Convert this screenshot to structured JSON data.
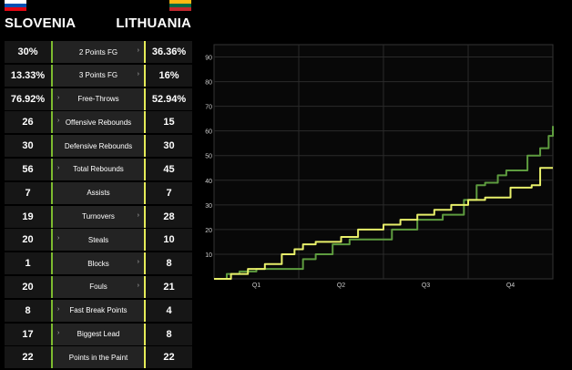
{
  "teams": {
    "left": {
      "name": "SLOVENIA",
      "flag_colors": [
        "#ffffff",
        "#0050b3",
        "#e30613"
      ]
    },
    "right": {
      "name": "LITHUANIA",
      "flag_colors": [
        "#fdb913",
        "#006a44",
        "#c1272d"
      ]
    }
  },
  "colors": {
    "left_accent": "#7dbb2f",
    "right_accent": "#e5ec57"
  },
  "stats": [
    {
      "label": "2 Points FG",
      "left": "30%",
      "right": "36.36%",
      "arrow": "right"
    },
    {
      "label": "3 Points FG",
      "left": "13.33%",
      "right": "16%",
      "arrow": "right"
    },
    {
      "label": "Free-Throws",
      "left": "76.92%",
      "right": "52.94%",
      "arrow": "left"
    },
    {
      "label": "Offensive Rebounds",
      "left": "26",
      "right": "15",
      "arrow": "left"
    },
    {
      "label": "Defensive Rebounds",
      "left": "30",
      "right": "30",
      "arrow": "none"
    },
    {
      "label": "Total Rebounds",
      "left": "56",
      "right": "45",
      "arrow": "left"
    },
    {
      "label": "Assists",
      "left": "7",
      "right": "7",
      "arrow": "none"
    },
    {
      "label": "Turnovers",
      "left": "19",
      "right": "28",
      "arrow": "right"
    },
    {
      "label": "Steals",
      "left": "20",
      "right": "10",
      "arrow": "left"
    },
    {
      "label": "Blocks",
      "left": "1",
      "right": "8",
      "arrow": "right"
    },
    {
      "label": "Fouls",
      "left": "20",
      "right": "21",
      "arrow": "right"
    },
    {
      "label": "Fast Break Points",
      "left": "8",
      "right": "4",
      "arrow": "left"
    },
    {
      "label": "Biggest Lead",
      "left": "17",
      "right": "8",
      "arrow": "left"
    },
    {
      "label": "Points in the Paint",
      "left": "22",
      "right": "22",
      "arrow": "none"
    }
  ],
  "chart_data": {
    "type": "line",
    "xlabel": "",
    "ylabel": "",
    "x_ticks": [
      "Q1",
      "Q2",
      "Q3",
      "Q4"
    ],
    "xlim": [
      0,
      40
    ],
    "ylim": [
      0,
      95
    ],
    "y_ticks": [
      10,
      20,
      30,
      40,
      50,
      60,
      70,
      80,
      90
    ],
    "grid": true,
    "series": [
      {
        "color": "#5e9c3f",
        "x": [
          0,
          1.5,
          3,
          5,
          7,
          9.5,
          10.5,
          12,
          14,
          16,
          18,
          21,
          24,
          27,
          29.5,
          31,
          32,
          33.5,
          34.5,
          37,
          38.5,
          39.5,
          40
        ],
        "y": [
          0,
          2,
          3,
          4,
          4,
          4,
          8,
          10,
          14,
          16,
          16,
          20,
          24,
          26,
          32,
          38,
          39,
          42,
          44,
          50,
          53,
          58,
          62
        ]
      },
      {
        "color": "#e8f06a",
        "x": [
          0,
          2,
          4,
          6,
          8,
          9.5,
          10.5,
          12,
          15,
          17,
          20,
          22,
          24,
          26,
          28,
          30,
          32,
          34,
          35,
          37.5,
          38.5,
          40
        ],
        "y": [
          0,
          2,
          4,
          6,
          10,
          12,
          14,
          15,
          17,
          20,
          22,
          24,
          26,
          28,
          30,
          32,
          33,
          33,
          37,
          38,
          45,
          45
        ]
      }
    ]
  }
}
